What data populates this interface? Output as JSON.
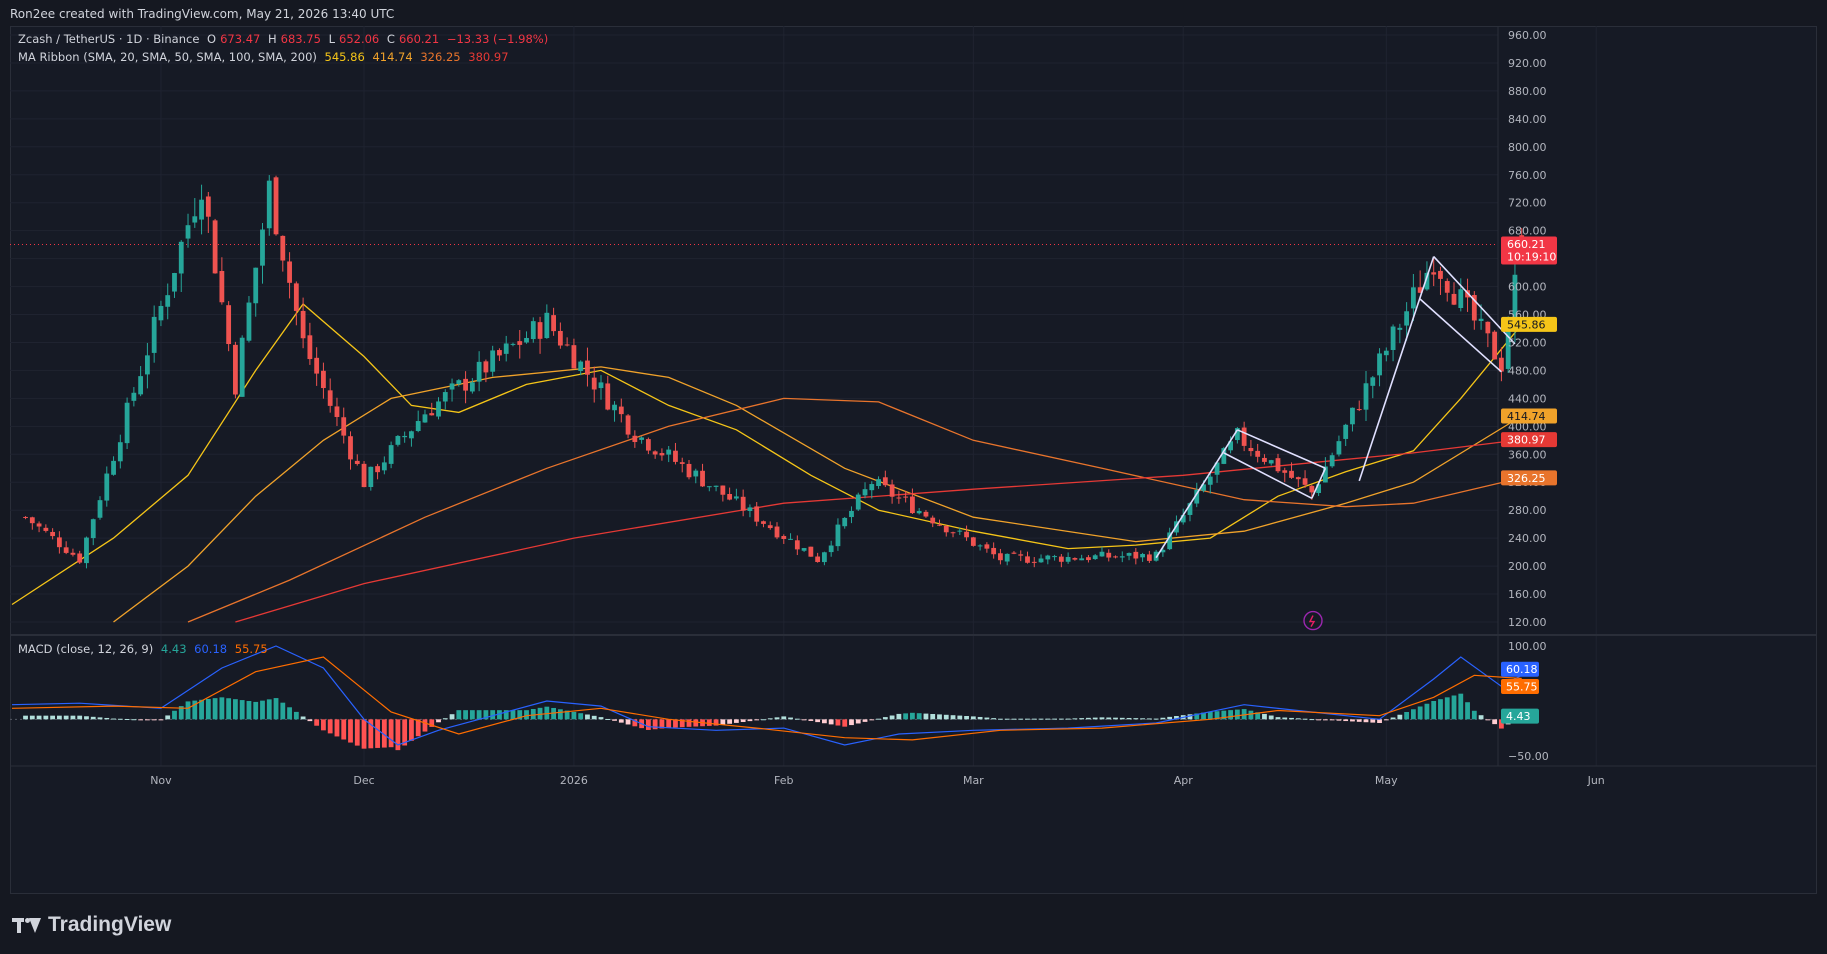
{
  "header": {
    "credit": "Ron2ee created with TradingView.com, May 21, 2026 13:40 UTC"
  },
  "legend": {
    "symbol": "Zcash / TetherUS · 1D · Binance",
    "o_label": "O",
    "o": "673.47",
    "h_label": "H",
    "h": "683.75",
    "l_label": "L",
    "l": "652.06",
    "c_label": "C",
    "c": "660.21",
    "change": "−13.33 (−1.98%)",
    "ma_label": "MA Ribbon (SMA, 20, SMA, 50, SMA, 100, SMA, 200)",
    "ma_values": [
      "545.86",
      "414.74",
      "326.25",
      "380.97"
    ],
    "macd_label": "MACD (close, 12, 26, 9)",
    "macd_values": [
      "4.43",
      "60.18",
      "55.75"
    ]
  },
  "colors": {
    "up": "#26a69a",
    "down": "#ef5350",
    "sma20": "#f5c518",
    "sma50": "#f0a22a",
    "sma100": "#e8742c",
    "sma200": "#e53935",
    "macd": "#2962ff",
    "signal": "#ff6d00",
    "hist_up_strong": "#26a69a",
    "hist_up_weak": "#b2dfdb",
    "hist_dn_strong": "#ff5252",
    "hist_dn_weak": "#ffcdd2",
    "pattern": "#e0e0ff"
  },
  "price_axis_ticks": [
    "960.00",
    "920.00",
    "880.00",
    "840.00",
    "800.00",
    "760.00",
    "720.00",
    "680.00",
    "600.00",
    "560.00",
    "520.00",
    "480.00",
    "440.00",
    "400.00",
    "360.00",
    "320.00",
    "280.00",
    "240.00",
    "200.00",
    "160.00",
    "120.00"
  ],
  "macd_axis_ticks": [
    "100.00",
    "−50.00"
  ],
  "time_axis": [
    "Nov",
    "Dec",
    "2026",
    "Feb",
    "Mar",
    "Apr",
    "May",
    "Jun"
  ],
  "price_labels": [
    {
      "text": "660.21",
      "sub": "10:19:10",
      "value": 660.21,
      "color": "#f23645"
    },
    {
      "text": "545.86",
      "value": 545.86,
      "color": "#f5c518"
    },
    {
      "text": "414.74",
      "value": 414.74,
      "color": "#f0a22a"
    },
    {
      "text": "380.97",
      "value": 380.97,
      "color": "#e53935"
    },
    {
      "text": "326.25",
      "value": 326.25,
      "color": "#e8742c"
    }
  ],
  "macd_labels": [
    {
      "text": "60.18",
      "value": 60.18,
      "color": "#2962ff"
    },
    {
      "text": "55.75",
      "value": 55.75,
      "color": "#ff6d00"
    },
    {
      "text": "4.43",
      "value": 4.43,
      "color": "#26a69a"
    }
  ],
  "branding": {
    "name": "TradingView"
  },
  "chart_data": {
    "type": "candlestick",
    "title": "Zcash / TetherUS · 1D · Binance",
    "ylim": [
      110,
      975
    ],
    "x_range": [
      "2025-10-10",
      "2026-06-10"
    ],
    "candles_summary": "daily OHLC, Oct 2025 – May 21 2026",
    "key_points": [
      {
        "date": "2025-10-12",
        "price": 270
      },
      {
        "date": "2025-10-20",
        "price": 210
      },
      {
        "date": "2025-11-07",
        "price": 750
      },
      {
        "date": "2025-11-12",
        "price": 460
      },
      {
        "date": "2025-11-17",
        "price": 740
      },
      {
        "date": "2025-11-22",
        "price": 520
      },
      {
        "date": "2025-12-01",
        "price": 320
      },
      {
        "date": "2025-12-10",
        "price": 420
      },
      {
        "date": "2025-12-28",
        "price": 550
      },
      {
        "date": "2026-01-10",
        "price": 390
      },
      {
        "date": "2026-02-06",
        "price": 210
      },
      {
        "date": "2026-02-14",
        "price": 320
      },
      {
        "date": "2026-03-05",
        "price": 210
      },
      {
        "date": "2026-03-28",
        "price": 215
      },
      {
        "date": "2026-04-09",
        "price": 385
      },
      {
        "date": "2026-04-20",
        "price": 305
      },
      {
        "date": "2026-05-08",
        "price": 640
      },
      {
        "date": "2026-05-18",
        "price": 490
      },
      {
        "date": "2026-05-21",
        "price": 660.21
      }
    ],
    "moving_averages": [
      {
        "name": "SMA 20",
        "last": 545.86
      },
      {
        "name": "SMA 50",
        "last": 414.74
      },
      {
        "name": "SMA 100",
        "last": 326.25
      },
      {
        "name": "SMA 200",
        "last": 380.97
      }
    ],
    "macd": {
      "macd": 60.18,
      "signal": 55.75,
      "histogram": 4.43,
      "ylim": [
        -75,
        125
      ]
    }
  }
}
